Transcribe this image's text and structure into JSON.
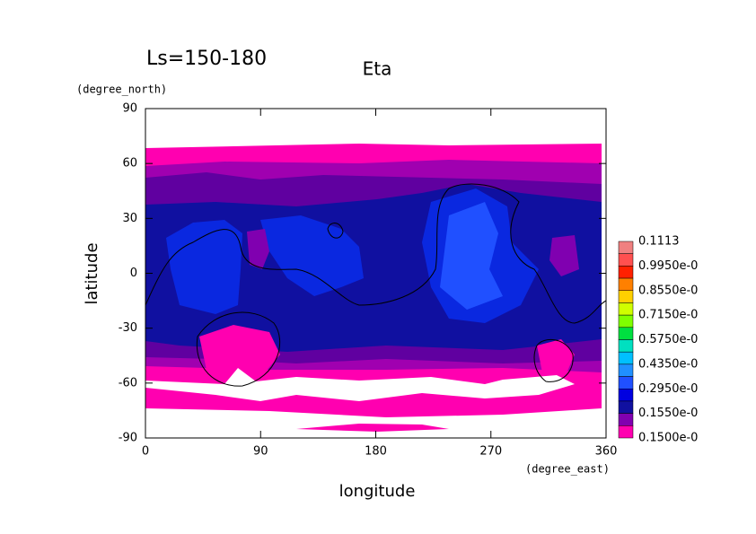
{
  "chart_data": {
    "type": "contour",
    "title": "Eta",
    "subtitle": "Ls=150-180",
    "x_label": "longitude",
    "y_label": "latitude",
    "x_unit": "(degree_east)",
    "y_unit": "(degree_north)",
    "xlim": [
      0,
      360
    ],
    "xticks": [
      0,
      90,
      180,
      270,
      360
    ],
    "ylim": [
      -90,
      90
    ],
    "yticks": [
      -90,
      -60,
      -30,
      0,
      30,
      60,
      90
    ],
    "colorbar": {
      "labels": [
        "0.1113",
        "0.9950e-0",
        "0.8550e-0",
        "0.7150e-0",
        "0.5750e-0",
        "0.4350e-0",
        "0.2950e-0",
        "0.1550e-0",
        "0.1500e-0"
      ],
      "colors": [
        "#f08080",
        "#ff5050",
        "#ff2000",
        "#ff8000",
        "#ffd000",
        "#d0ff00",
        "#80ff00",
        "#00e040",
        "#00e0c0",
        "#00c0ff",
        "#2090ff",
        "#2050ff",
        "#0000e0",
        "#1010a0",
        "#8000b0",
        "#ff00b0"
      ]
    }
  }
}
